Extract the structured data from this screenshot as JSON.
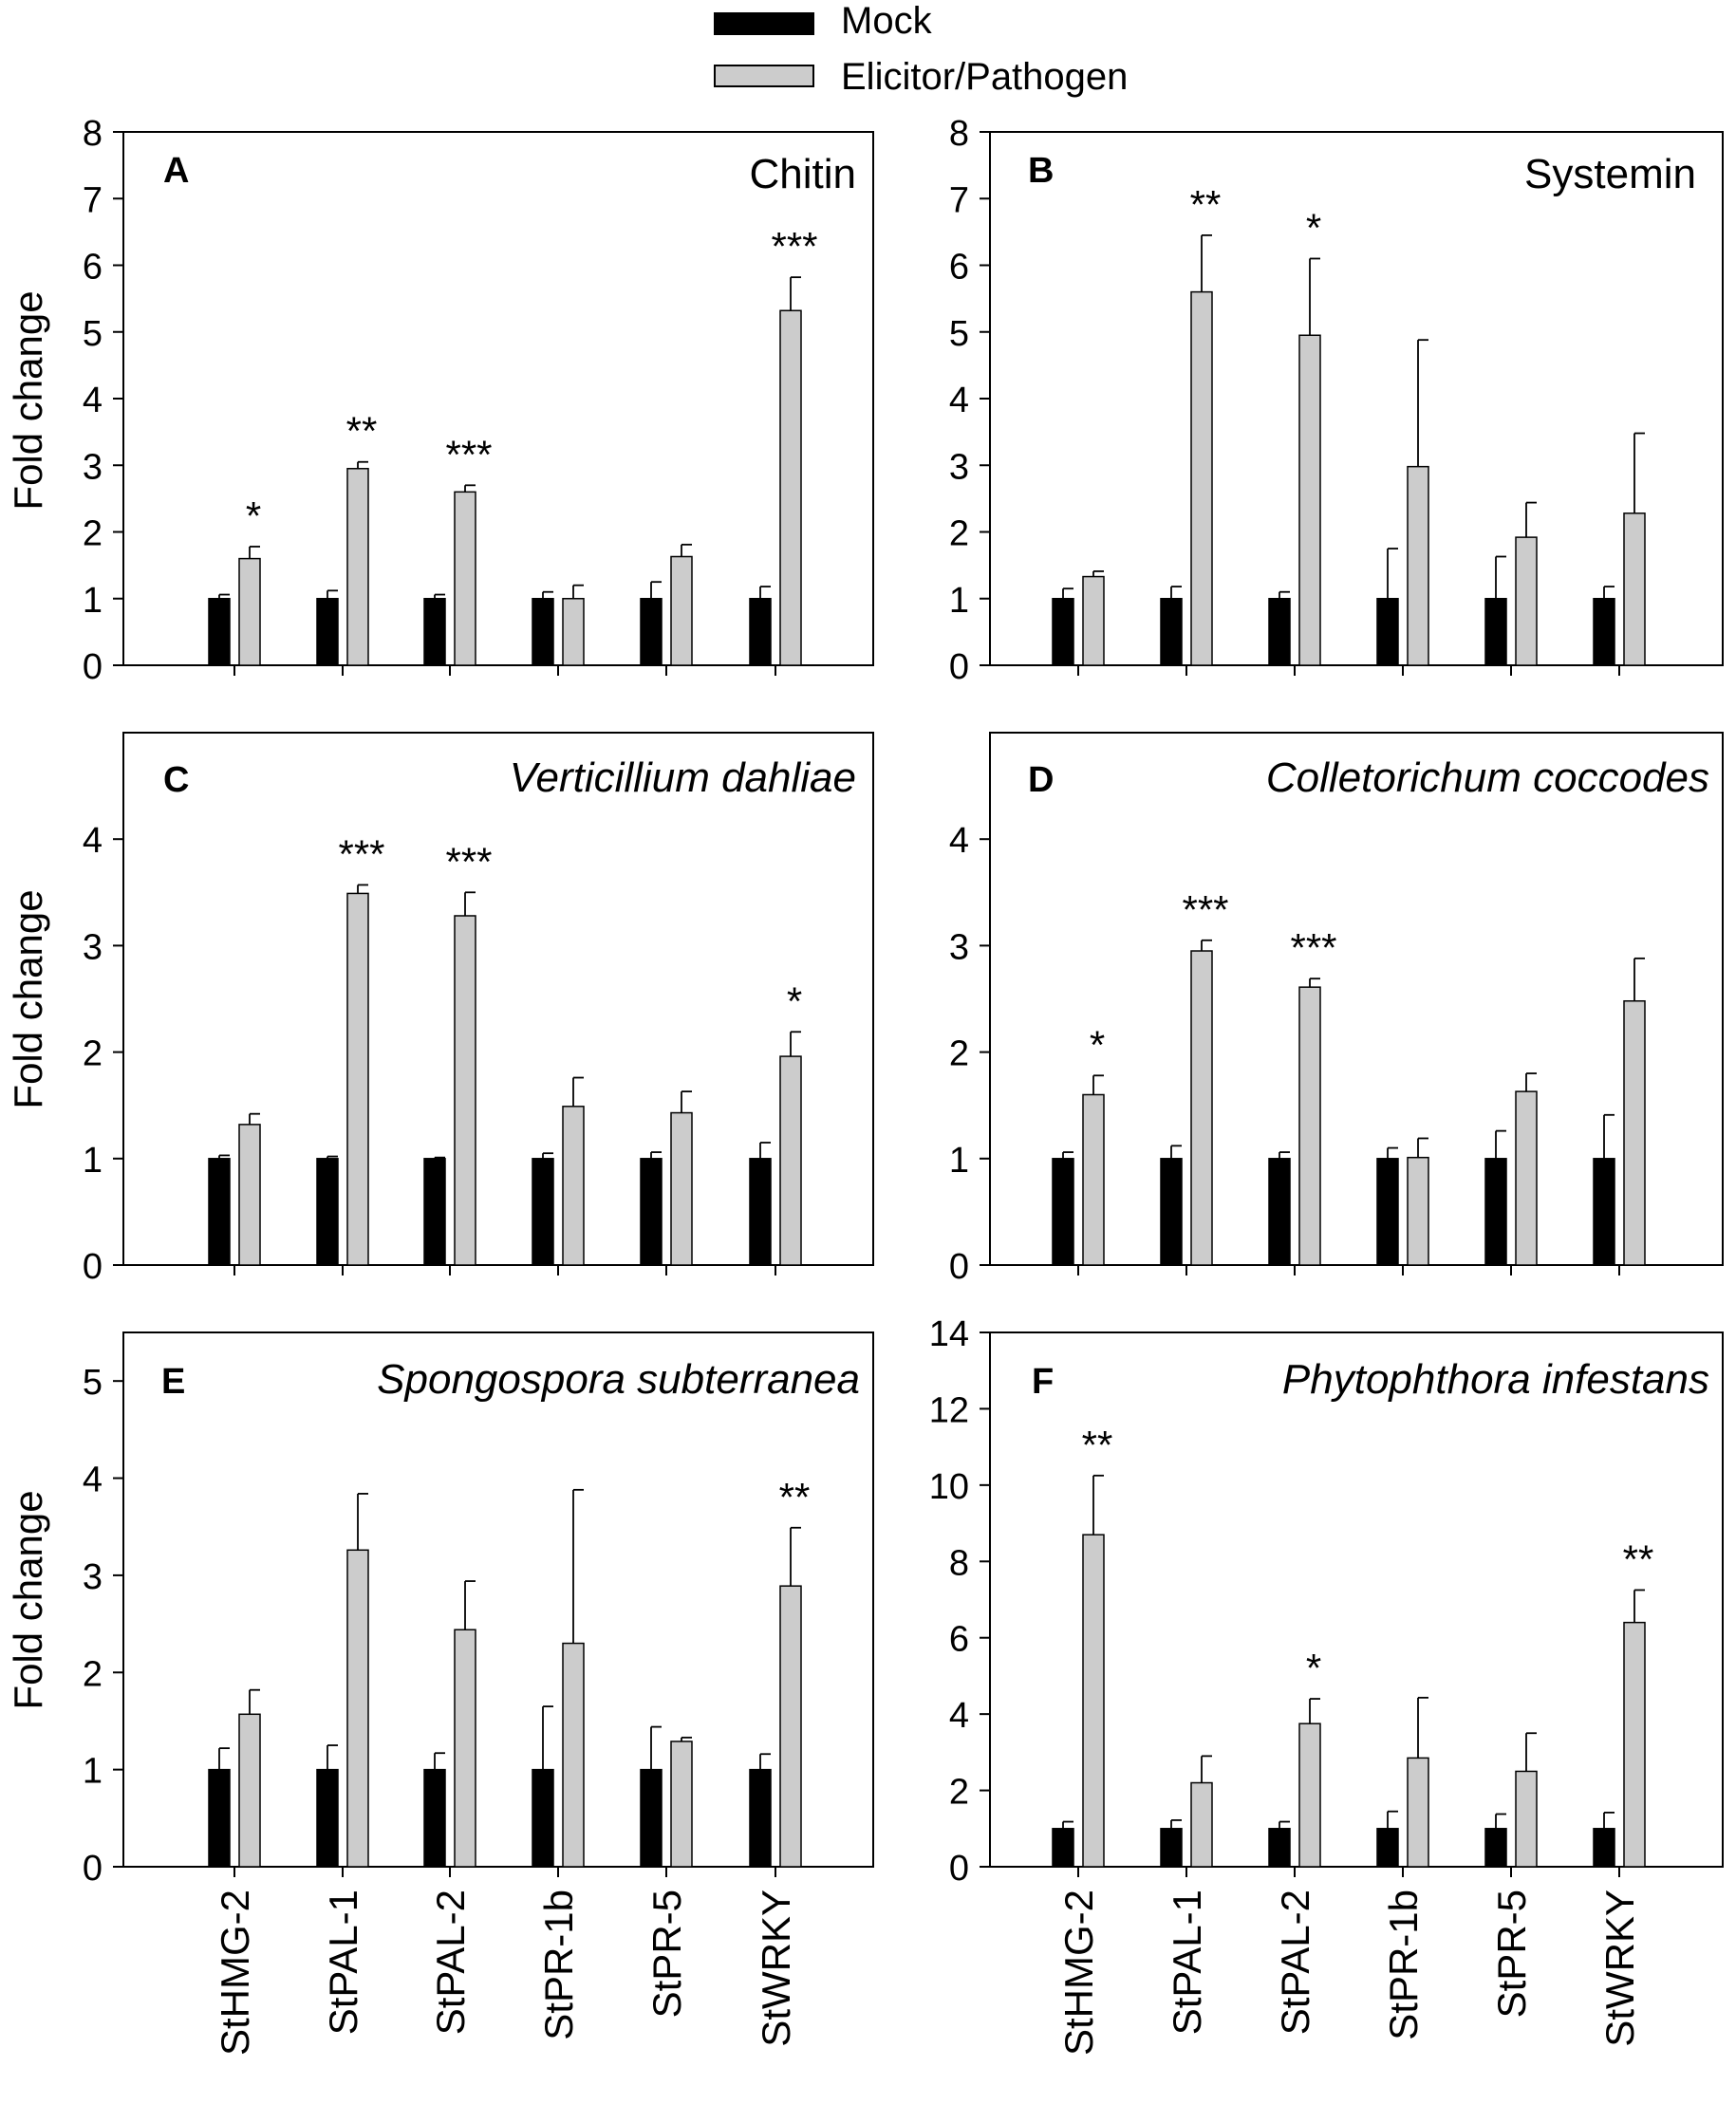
{
  "colors": {
    "mock": "#000000",
    "treated": "#cccccc",
    "axis": "#000000"
  },
  "legend": {
    "mock": "Mock",
    "treated": "Elicitor/Pathogen"
  },
  "ylabel": "Fold change",
  "chart_data": [
    {
      "panel": "A",
      "title": "Chitin",
      "italic": false,
      "type": "bar",
      "categories": [
        "StHMG-2",
        "StPAL-1",
        "StPAL-2",
        "StPR-1b",
        "StPR-5",
        "StWRKY"
      ],
      "ylim": [
        0,
        8
      ],
      "yticks": [
        0,
        1,
        2,
        3,
        4,
        5,
        6,
        7,
        8
      ],
      "series": [
        {
          "name": "Mock",
          "values": [
            1,
            1,
            1,
            1,
            1,
            1
          ],
          "errors": [
            0.06,
            0.12,
            0.06,
            0.1,
            0.25,
            0.18
          ]
        },
        {
          "name": "Elicitor/Pathogen",
          "values": [
            1.6,
            2.95,
            2.6,
            1.0,
            1.63,
            5.32
          ],
          "errors": [
            0.18,
            0.1,
            0.1,
            0.2,
            0.18,
            0.5
          ]
        }
      ],
      "significance": [
        "*",
        "**",
        "***",
        "",
        "",
        "***"
      ]
    },
    {
      "panel": "B",
      "title": "Systemin",
      "italic": false,
      "type": "bar",
      "categories": [
        "StHMG-2",
        "StPAL-1",
        "StPAL-2",
        "StPR-1b",
        "StPR-5",
        "StWRKY"
      ],
      "ylim": [
        0,
        8
      ],
      "yticks": [
        0,
        1,
        2,
        3,
        4,
        5,
        6,
        7,
        8
      ],
      "series": [
        {
          "name": "Mock",
          "values": [
            1,
            1,
            1,
            1,
            1,
            1
          ],
          "errors": [
            0.15,
            0.18,
            0.1,
            0.75,
            0.63,
            0.18
          ]
        },
        {
          "name": "Elicitor/Pathogen",
          "values": [
            1.33,
            5.6,
            4.95,
            2.98,
            1.92,
            2.28
          ],
          "errors": [
            0.08,
            0.85,
            1.15,
            1.9,
            0.52,
            1.2
          ]
        }
      ],
      "significance": [
        "",
        "**",
        "*",
        "",
        "",
        ""
      ]
    },
    {
      "panel": "C",
      "title": "Verticillium dahliae",
      "italic": true,
      "type": "bar",
      "categories": [
        "StHMG-2",
        "StPAL-1",
        "StPAL-2",
        "StPR-1b",
        "StPR-5",
        "StWRKY"
      ],
      "ylim": [
        0,
        5
      ],
      "yticks": [
        0,
        1,
        2,
        3,
        4
      ],
      "series": [
        {
          "name": "Mock",
          "values": [
            1,
            1,
            1,
            1,
            1,
            1
          ],
          "errors": [
            0.03,
            0.02,
            0.01,
            0.05,
            0.06,
            0.15
          ]
        },
        {
          "name": "Elicitor/Pathogen",
          "values": [
            1.32,
            3.49,
            3.28,
            1.49,
            1.43,
            1.96
          ],
          "errors": [
            0.1,
            0.08,
            0.22,
            0.27,
            0.2,
            0.23
          ]
        }
      ],
      "significance": [
        "",
        "***",
        "***",
        "",
        "",
        "*"
      ]
    },
    {
      "panel": "D",
      "title": "Colletorichum coccodes",
      "italic": true,
      "type": "bar",
      "categories": [
        "StHMG-2",
        "StPAL-1",
        "StPAL-2",
        "StPR-1b",
        "StPR-5",
        "StWRKY"
      ],
      "ylim": [
        0,
        5
      ],
      "yticks": [
        0,
        1,
        2,
        3,
        4
      ],
      "series": [
        {
          "name": "Mock",
          "values": [
            1,
            1,
            1,
            1,
            1,
            1
          ],
          "errors": [
            0.06,
            0.12,
            0.06,
            0.1,
            0.26,
            0.41
          ]
        },
        {
          "name": "Elicitor/Pathogen",
          "values": [
            1.6,
            2.95,
            2.61,
            1.01,
            1.63,
            2.48
          ],
          "errors": [
            0.18,
            0.1,
            0.08,
            0.18,
            0.17,
            0.4
          ]
        }
      ],
      "significance": [
        "*",
        "***",
        "***",
        "",
        "",
        ""
      ]
    },
    {
      "panel": "E",
      "title": "Spongospora subterranea",
      "italic": true,
      "type": "bar",
      "categories": [
        "StHMG-2",
        "StPAL-1",
        "StPAL-2",
        "StPR-1b",
        "StPR-5",
        "StWRKY"
      ],
      "ylim": [
        0,
        5.5
      ],
      "yticks": [
        0,
        1,
        2,
        3,
        4,
        5
      ],
      "series": [
        {
          "name": "Mock",
          "values": [
            1,
            1,
            1,
            1,
            1,
            1
          ],
          "errors": [
            0.22,
            0.25,
            0.17,
            0.65,
            0.44,
            0.16
          ]
        },
        {
          "name": "Elicitor/Pathogen",
          "values": [
            1.57,
            3.26,
            2.44,
            2.3,
            1.29,
            2.89
          ],
          "errors": [
            0.25,
            0.58,
            0.5,
            1.58,
            0.04,
            0.6
          ]
        }
      ],
      "significance": [
        "",
        "",
        "",
        "",
        "",
        "**"
      ]
    },
    {
      "panel": "F",
      "title": "Phytophthora infestans",
      "italic": true,
      "type": "bar",
      "categories": [
        "StHMG-2",
        "StPAL-1",
        "StPAL-2",
        "StPR-1b",
        "StPR-5",
        "StWRKY"
      ],
      "ylim": [
        0,
        14
      ],
      "yticks": [
        0,
        2,
        4,
        6,
        8,
        10,
        12,
        14
      ],
      "series": [
        {
          "name": "Mock",
          "values": [
            1,
            1,
            1,
            1,
            1,
            1
          ],
          "errors": [
            0.18,
            0.22,
            0.18,
            0.45,
            0.38,
            0.42
          ]
        },
        {
          "name": "Elicitor/Pathogen",
          "values": [
            8.7,
            2.2,
            3.75,
            2.85,
            2.5,
            6.4
          ],
          "errors": [
            1.55,
            0.7,
            0.65,
            1.58,
            1.0,
            0.85
          ]
        }
      ],
      "significance": [
        "**",
        "",
        "*",
        "",
        "",
        "**"
      ]
    }
  ]
}
